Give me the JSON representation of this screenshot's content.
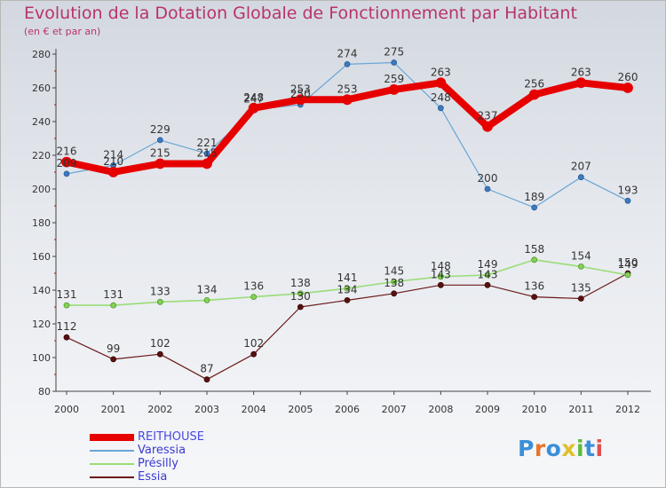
{
  "title": "Evolution de la Dotation Globale de Fonctionnement par Habitant",
  "subtitle": "(en € et par an)",
  "logo": {
    "text": "Proxiti",
    "colors": [
      "#3a8fd8",
      "#e8752a",
      "#3a8fd8",
      "#e0c02a",
      "#5dbb3a",
      "#3a8fd8",
      "#e05050"
    ]
  },
  "chart_data": {
    "type": "line",
    "title": "Evolution de la Dotation Globale de Fonctionnement par Habitant",
    "subtitle": "(en € et par an)",
    "xlabel": "",
    "ylabel": "",
    "categories": [
      "2000",
      "2001",
      "2002",
      "2003",
      "2004",
      "2005",
      "2006",
      "2007",
      "2008",
      "2009",
      "2010",
      "2011",
      "2012"
    ],
    "ylim": [
      80,
      280
    ],
    "yticks": [
      80,
      100,
      120,
      140,
      160,
      180,
      200,
      220,
      240,
      260,
      280
    ],
    "grid": false,
    "legend_position": "bottom-left",
    "series": [
      {
        "name": "REITHOUSE",
        "color": "#e60000",
        "values": [
          216,
          210,
          215,
          215,
          248,
          253,
          253,
          259,
          263,
          237,
          256,
          263,
          260
        ]
      },
      {
        "name": "Varessia",
        "color": "#6aa6d6",
        "values": [
          209,
          214,
          229,
          221,
          247,
          250,
          274,
          275,
          248,
          200,
          189,
          207,
          193
        ]
      },
      {
        "name": "Présilly",
        "color": "#99dd77",
        "values": [
          131,
          131,
          133,
          134,
          136,
          138,
          141,
          145,
          148,
          149,
          158,
          154,
          149
        ]
      },
      {
        "name": "Essia",
        "color": "#6b1a1a",
        "values": [
          112,
          99,
          102,
          87,
          102,
          130,
          134,
          138,
          143,
          143,
          136,
          135,
          150
        ]
      }
    ]
  }
}
